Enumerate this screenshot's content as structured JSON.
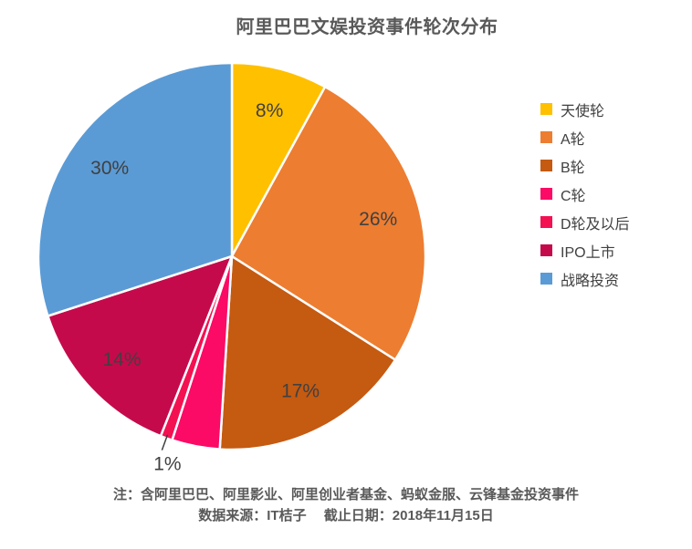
{
  "title": "阿里巴巴文娱投资事件轮次分布",
  "chart_data": {
    "type": "pie",
    "title": "阿里巴巴文娱投资事件轮次分布",
    "start_angle_deg": 0,
    "direction": "clockwise",
    "legend_position": "right",
    "total_pct": 100,
    "slices": [
      {
        "label": "天使轮",
        "value_pct": 8,
        "color": "#FFC000",
        "data_label": "8%"
      },
      {
        "label": "A轮",
        "value_pct": 26,
        "color": "#ED7D31",
        "data_label": "26%"
      },
      {
        "label": "B轮",
        "value_pct": 17,
        "color": "#C55A11",
        "data_label": "17%"
      },
      {
        "label": "C轮",
        "value_pct": 4,
        "color": "#FB0A66",
        "data_label": ""
      },
      {
        "label": "D轮及以后",
        "value_pct": 1,
        "color": "#F41152",
        "data_label": "1%",
        "label_outside": true
      },
      {
        "label": "IPO上市",
        "value_pct": 14,
        "color": "#C50A4B",
        "data_label": "14%"
      },
      {
        "label": "战略投资",
        "value_pct": 30,
        "color": "#5B9BD5",
        "data_label": "30%"
      }
    ]
  },
  "footer": {
    "note": "注：含阿里巴巴、阿里影业、阿里创业者基金、蚂蚁金服、云锋基金投资事件",
    "source": "数据来源：IT桔子　 截止日期：2018年11月15日"
  },
  "colors": {
    "background": "#FFFFFF",
    "title_text": "#595959",
    "percent_label_text": "#404040",
    "legend_text": "#404040",
    "footer_text": "#595959",
    "slice_border": "#FFFFFF",
    "leader_line": "#404040"
  }
}
